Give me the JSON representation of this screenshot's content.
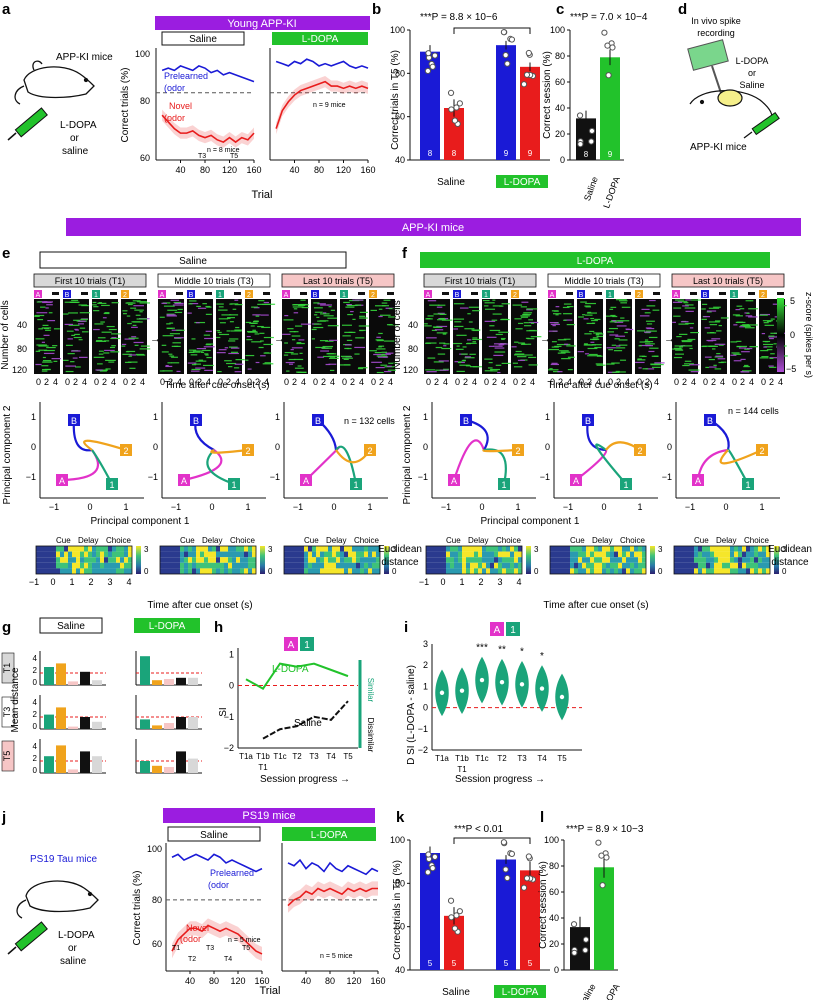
{
  "panels": {
    "a": "a",
    "b": "b",
    "c": "c",
    "d": "d",
    "e": "e",
    "f": "f",
    "g": "g",
    "h": "h",
    "i": "i",
    "j": "j",
    "k": "k",
    "l": "l"
  },
  "colors": {
    "purple": "#9b1de0",
    "green": "#22c22b",
    "blue": "#1a1ad6",
    "red": "#e81c1c",
    "black": "#111111",
    "teal": "#1aa47a",
    "orange": "#f0a31c",
    "magenta": "#e232c9",
    "pink": "#f6c6c6",
    "gray": "#d8d8d8"
  },
  "a": {
    "header": "Young APP-KI",
    "mice_label": "APP-KI mice",
    "drug_lines": [
      "L-DOPA",
      "or",
      "saline"
    ],
    "saline_box": "Saline",
    "ldopa_box": "L-DOPA",
    "ylabel": "Correct trials (%)",
    "xlabel": "Trial",
    "prelearned_1": "Prelearned",
    "prelearned_2": "(odor",
    "novel_1": "Novel",
    "novel_2": "(odor",
    "n_saline": "n = 8 mice",
    "n_ldopa": "n = 9 mice",
    "t3": "T3",
    "t5": "T5",
    "yticks": [
      "100",
      "80",
      "60"
    ],
    "xticks": [
      "40",
      "80",
      "120",
      "160"
    ]
  },
  "b": {
    "stat": "***P = 8.8 × 10−6",
    "ylabel": "Correct trials in T5 (%)",
    "yticks": [
      "100",
      "80",
      "60",
      "40"
    ],
    "group_saline": "Saline",
    "group_ldopa": "L-DOPA",
    "n_labels": [
      "8",
      "8",
      "9",
      "9"
    ]
  },
  "c": {
    "stat": "***P = 7.0 × 10−4",
    "ylabel": "Correct session (%)",
    "yticks": [
      "100",
      "80",
      "60",
      "40",
      "20",
      "0"
    ],
    "xlabels": [
      "Saline",
      "L-DOPA"
    ],
    "n_labels": [
      "8",
      "9"
    ]
  },
  "d": {
    "lines": [
      "In vivo spike",
      "recording"
    ],
    "drug_lines": [
      "L-DOPA",
      "or",
      "Saline"
    ],
    "mice_label": "APP-KI mice"
  },
  "banner_app": "APP-KI mice",
  "e": {
    "header": "Saline",
    "trial_labels": [
      "First 10 trials (T1)",
      "Middle 10 trials (T3)",
      "Last 10 trials (T5)"
    ],
    "ylabel": "Number of cells",
    "yticks": [
      "40",
      "80",
      "120"
    ],
    "xlabel": "Time after cue onset (s)",
    "xticks": [
      "0",
      "2",
      "4"
    ],
    "n_cells": "n = 132 cells",
    "pc1": "Principal component 1",
    "pc2": "Principal component 2",
    "pc_xticks": [
      "−1",
      "0",
      "1"
    ],
    "pc_yticks": [
      "1",
      "0",
      "−1"
    ],
    "dist_xlabel": "Time after cue onset (s)",
    "dist_xticks": [
      "−1",
      "0",
      "1",
      "2",
      "3",
      "4"
    ],
    "cue": "Cue",
    "delay": "Delay",
    "choice": "Choice",
    "cbar_ticks": [
      "3",
      "0"
    ]
  },
  "f": {
    "header": "L-DOPA",
    "trial_labels": [
      "First 10 trials (T1)",
      "Middle 10 trials (T3)",
      "Last 10 trials (T5)"
    ],
    "ylabel": "Number of cells",
    "n_cells": "n = 144 cells",
    "zscore_label": "z-score (spikes per s)",
    "zticks": [
      "5",
      "0",
      "−5"
    ],
    "dist_label_1": "Euclidean",
    "dist_label_2": "distance"
  },
  "g": {
    "saline_box": "Saline",
    "ldopa_box": "L-DOPA",
    "ylabel": "Mean distance",
    "rows": [
      "T1",
      "T3",
      "T5"
    ],
    "yticks": [
      "4",
      "2",
      "0"
    ]
  },
  "h": {
    "ylabel": "SI",
    "xlabel": "Session progress →",
    "ldopa": "L-DOPA",
    "saline": "Saline",
    "similar": "Similar",
    "dissimilar": "Dissimilar",
    "xticks": [
      "T1a",
      "T1b",
      "T1c",
      "T2",
      "T3",
      "T4",
      "T5"
    ],
    "t1": "T1",
    "yticks": [
      "1",
      "0",
      "−1",
      "−2"
    ]
  },
  "i": {
    "ylabel": "D SI (L-DOPA - saline)",
    "xlabel": "Session progress →",
    "xticks": [
      "T1a",
      "T1b",
      "T1c",
      "T2",
      "T3",
      "T4",
      "T5"
    ],
    "t1": "T1",
    "yticks": [
      "3",
      "2",
      "1",
      "0",
      "−1",
      "−2"
    ],
    "stars": [
      "***",
      "**",
      "*",
      "*"
    ]
  },
  "banner_ps19": "PS19 mice",
  "j": {
    "mice_label": "PS19 Tau mice",
    "drug_lines": [
      "L-DOPA",
      "or",
      "saline"
    ],
    "saline_box": "Saline",
    "ldopa_box": "L-DOPA",
    "ylabel": "Correct trials (%)",
    "xlabel": "Trial",
    "prelearned_1": "Prelearned",
    "prelearned_2": "(odor",
    "novel_1": "Novel",
    "novel_2": "(odor",
    "n_saline": "n = 5 mice",
    "n_ldopa": "n = 5 mice",
    "t_labels": [
      "T1",
      "T2",
      "T3",
      "T4",
      "T5"
    ],
    "yticks": [
      "100",
      "80",
      "60"
    ],
    "xticks": [
      "40",
      "80",
      "120",
      "160"
    ]
  },
  "k": {
    "stat": "***P < 0.01",
    "ylabel": "Correct trials in T5 (%)",
    "yticks": [
      "100",
      "80",
      "60",
      "40"
    ],
    "group_saline": "Saline",
    "group_ldopa": "L-DOPA",
    "n_labels": [
      "5",
      "5",
      "5",
      "5"
    ]
  },
  "l": {
    "stat": "***P = 8.9 × 10−3",
    "ylabel": "Correct session (%)",
    "yticks": [
      "100",
      "80",
      "60",
      "40",
      "20",
      "0"
    ],
    "xlabels": [
      "Saline",
      "L-DOPA"
    ]
  },
  "odor_letters": {
    "A": "A",
    "B": "B",
    "one": "1",
    "two": "2"
  },
  "chart_data": [
    {
      "id": "a-saline",
      "type": "line",
      "title": "Saline",
      "xlabel": "Trial",
      "ylabel": "Correct trials (%)",
      "xlim": [
        0,
        160
      ],
      "ylim": [
        50,
        100
      ],
      "series": [
        {
          "name": "Prelearned",
          "x": [
            10,
            20,
            30,
            40,
            50,
            60,
            70,
            80,
            90,
            100,
            110,
            120,
            130,
            140,
            150,
            160
          ],
          "values": [
            90,
            91,
            90,
            92,
            91,
            90,
            92,
            91,
            89,
            90,
            88,
            89,
            88,
            87,
            86,
            85
          ]
        },
        {
          "name": "Novel",
          "x": [
            10,
            20,
            30,
            40,
            50,
            60,
            70,
            80,
            90,
            100,
            110,
            120,
            130,
            140,
            150,
            160
          ],
          "values": [
            70,
            67,
            64,
            62,
            62,
            63,
            61,
            60,
            61,
            59,
            58,
            60,
            58,
            60,
            59,
            62
          ]
        }
      ]
    },
    {
      "id": "a-ldopa",
      "type": "line",
      "title": "L-DOPA",
      "xlabel": "Trial",
      "ylabel": "Correct trials (%)",
      "xlim": [
        0,
        160
      ],
      "ylim": [
        50,
        100
      ],
      "series": [
        {
          "name": "Prelearned",
          "x": [
            10,
            20,
            30,
            40,
            50,
            60,
            70,
            80,
            90,
            100,
            110,
            120,
            130,
            140,
            150,
            160
          ],
          "values": [
            94,
            93,
            92,
            94,
            93,
            95,
            94,
            92,
            93,
            92,
            93,
            94,
            92,
            91,
            92,
            91
          ]
        },
        {
          "name": "Novel",
          "x": [
            10,
            20,
            30,
            40,
            50,
            60,
            70,
            80,
            90,
            100,
            110,
            120,
            130,
            140,
            150,
            160
          ],
          "values": [
            64,
            72,
            76,
            79,
            81,
            82,
            83,
            84,
            85,
            83,
            83,
            82,
            83,
            82,
            83,
            82
          ]
        }
      ]
    },
    {
      "id": "b",
      "type": "bar",
      "ylabel": "Correct trials in T5 (%)",
      "ylim": [
        40,
        100
      ],
      "categories": [
        "Saline AB",
        "Saline 12",
        "L-DOPA AB",
        "L-DOPA 12"
      ],
      "values": [
        90,
        64,
        93,
        83
      ],
      "errors": [
        3,
        4,
        2,
        2
      ]
    },
    {
      "id": "c",
      "type": "bar",
      "ylabel": "Correct session (%)",
      "ylim": [
        0,
        100
      ],
      "categories": [
        "Saline",
        "L-DOPA"
      ],
      "values": [
        32,
        79
      ],
      "errors": [
        6,
        6
      ]
    },
    {
      "id": "h",
      "type": "line",
      "ylabel": "SI",
      "xlabel": "Session progress →",
      "ylim": [
        -2,
        1.2
      ],
      "categories": [
        "T1a",
        "T1b",
        "T1c",
        "T2",
        "T3",
        "T4",
        "T5"
      ],
      "series": [
        {
          "name": "L-DOPA",
          "values": [
            0.2,
            -0.1,
            0.7,
            0.6,
            0.7,
            0.5,
            0.3
          ]
        },
        {
          "name": "Saline",
          "values": [
            null,
            -1.7,
            -1.4,
            -1.3,
            -1.0,
            -1.1,
            -0.5
          ]
        }
      ]
    },
    {
      "id": "i",
      "type": "violin",
      "ylabel": "D SI (L-DOPA - saline)",
      "ylim": [
        -2,
        3
      ],
      "categories": [
        "T1a",
        "T1b",
        "T1c",
        "T2",
        "T3",
        "T4",
        "T5"
      ],
      "medians": [
        0.7,
        0.8,
        1.3,
        1.2,
        1.1,
        0.9,
        0.5
      ]
    },
    {
      "id": "j-saline",
      "type": "line",
      "title": "Saline",
      "xlabel": "Trial",
      "ylabel": "Correct trials (%)",
      "xlim": [
        0,
        160
      ],
      "ylim": [
        55,
        100
      ],
      "series": [
        {
          "name": "Prelearned",
          "x": [
            10,
            20,
            30,
            40,
            50,
            60,
            70,
            80,
            90,
            100,
            110,
            120,
            130,
            140,
            150,
            160
          ],
          "values": [
            95,
            96,
            94,
            95,
            96,
            95,
            94,
            96,
            95,
            93,
            94,
            93,
            92,
            91,
            90,
            91
          ]
        },
        {
          "name": "Novel",
          "x": [
            10,
            20,
            30,
            40,
            50,
            60,
            70,
            80,
            90,
            100,
            110,
            120,
            130,
            140,
            150,
            160
          ],
          "values": [
            62,
            66,
            68,
            70,
            70,
            69,
            71,
            70,
            69,
            70,
            69,
            68,
            66,
            64,
            62,
            61
          ]
        }
      ]
    },
    {
      "id": "j-ldopa",
      "type": "line",
      "title": "L-DOPA",
      "xlabel": "Trial",
      "ylabel": "Correct trials (%)",
      "xlim": [
        0,
        160
      ],
      "ylim": [
        55,
        100
      ],
      "series": [
        {
          "name": "Prelearned",
          "x": [
            10,
            20,
            30,
            40,
            50,
            60,
            70,
            80,
            90,
            100,
            110,
            120,
            130,
            140,
            150,
            160
          ],
          "values": [
            93,
            92,
            94,
            91,
            93,
            92,
            90,
            93,
            91,
            90,
            92,
            91,
            90,
            89,
            91,
            90
          ]
        },
        {
          "name": "Novel",
          "x": [
            10,
            20,
            30,
            40,
            50,
            60,
            70,
            80,
            90,
            100,
            110,
            120,
            130,
            140,
            150,
            160
          ],
          "values": [
            78,
            80,
            81,
            83,
            82,
            84,
            83,
            84,
            83,
            82,
            84,
            83,
            84,
            83,
            84,
            84
          ]
        }
      ]
    },
    {
      "id": "k",
      "type": "bar",
      "ylabel": "Correct trials in T5 (%)",
      "ylim": [
        40,
        100
      ],
      "categories": [
        "Saline AB",
        "Saline 12",
        "L-DOPA AB",
        "L-DOPA 12"
      ],
      "values": [
        94,
        65,
        91,
        86
      ],
      "errors": [
        3,
        4,
        2,
        4
      ]
    },
    {
      "id": "l",
      "type": "bar",
      "ylabel": "Correct session (%)",
      "ylim": [
        0,
        100
      ],
      "categories": [
        "Saline",
        "L-DOPA"
      ],
      "values": [
        33,
        79
      ],
      "errors": [
        8,
        8
      ]
    }
  ]
}
